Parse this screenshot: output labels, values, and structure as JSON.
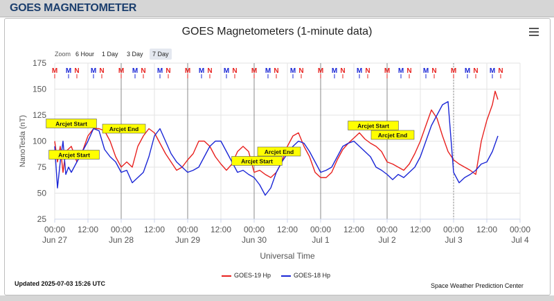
{
  "page": {
    "header_title": "GOES MAGNETOMETER"
  },
  "chart": {
    "title": "GOES Magnetometers (1-minute data)",
    "zoom": {
      "label": "Zoom",
      "buttons": [
        {
          "label": "6 Hour",
          "active": false
        },
        {
          "label": "1 Day",
          "active": false
        },
        {
          "label": "3 Day",
          "active": false
        },
        {
          "label": "7 Day",
          "active": true
        }
      ]
    },
    "updated": "Updated 2025-07-03 15:26 UTC",
    "credit": "Space Weather Prediction Center",
    "legend": [
      {
        "name": "GOES-19 Hp",
        "color": "#e8201e"
      },
      {
        "name": "GOES-18 Hp",
        "color": "#1a26d6"
      }
    ]
  },
  "chart_data": {
    "type": "line",
    "title": "GOES Magnetometers (1-minute data)",
    "xlabel": "Universal Time",
    "ylabel": "NanoTesla (nT)",
    "ylim": [
      25,
      175
    ],
    "yticks": [
      25,
      50,
      75,
      100,
      125,
      150,
      175
    ],
    "xlim": [
      0,
      168
    ],
    "x_unit": "hours since 2025-06-27 00:00 UTC",
    "xticks": [
      {
        "x": 0,
        "time": "00:00",
        "date": "Jun 27"
      },
      {
        "x": 12,
        "time": "12:00",
        "date": ""
      },
      {
        "x": 24,
        "time": "00:00",
        "date": "Jun 28"
      },
      {
        "x": 36,
        "time": "12:00",
        "date": ""
      },
      {
        "x": 48,
        "time": "00:00",
        "date": "Jun 29"
      },
      {
        "x": 60,
        "time": "12:00",
        "date": ""
      },
      {
        "x": 72,
        "time": "00:00",
        "date": "Jun 30"
      },
      {
        "x": 84,
        "time": "12:00",
        "date": ""
      },
      {
        "x": 96,
        "time": "00:00",
        "date": "Jul 1"
      },
      {
        "x": 108,
        "time": "12:00",
        "date": ""
      },
      {
        "x": 120,
        "time": "00:00",
        "date": "Jul 2"
      },
      {
        "x": 132,
        "time": "12:00",
        "date": ""
      },
      {
        "x": 144,
        "time": "00:00",
        "date": "Jul 3"
      },
      {
        "x": 156,
        "time": "12:00",
        "date": ""
      },
      {
        "x": 168,
        "time": "00:00",
        "date": "Jul 4"
      }
    ],
    "grid": true,
    "day_lines": [
      24,
      48,
      72,
      96,
      120
    ],
    "dotted_lines": [
      144
    ],
    "series": [
      {
        "name": "GOES-19 Hp",
        "color": "#e8201e",
        "x": [
          0,
          1,
          2,
          3,
          4,
          6,
          8,
          10,
          12,
          14,
          16,
          18,
          20,
          22,
          24,
          26,
          28,
          30,
          32,
          34,
          36,
          38,
          40,
          42,
          44,
          46,
          48,
          50,
          52,
          54,
          56,
          58,
          60,
          62,
          64,
          66,
          68,
          70,
          72,
          74,
          76,
          78,
          80,
          82,
          84,
          86,
          88,
          90,
          92,
          94,
          96,
          98,
          100,
          102,
          104,
          106,
          108,
          110,
          112,
          114,
          116,
          118,
          120,
          122,
          124,
          126,
          128,
          130,
          132,
          134,
          136,
          138,
          140,
          142,
          144,
          146,
          148,
          150,
          152,
          154,
          156,
          158,
          159,
          160
        ],
        "y": [
          100,
          80,
          95,
          70,
          90,
          95,
          80,
          90,
          105,
          112,
          112,
          110,
          100,
          85,
          75,
          80,
          75,
          95,
          105,
          112,
          108,
          98,
          88,
          80,
          72,
          75,
          82,
          88,
          100,
          100,
          95,
          85,
          78,
          72,
          78,
          90,
          95,
          90,
          70,
          72,
          68,
          65,
          70,
          80,
          95,
          105,
          108,
          95,
          85,
          70,
          65,
          65,
          70,
          82,
          92,
          98,
          103,
          108,
          102,
          98,
          95,
          90,
          80,
          78,
          75,
          72,
          78,
          88,
          100,
          115,
          130,
          122,
          105,
          90,
          82,
          78,
          75,
          72,
          68,
          100,
          120,
          135,
          148,
          140
        ]
      },
      {
        "name": "GOES-18 Hp",
        "color": "#1a26d6",
        "x": [
          0,
          1,
          2,
          3,
          4,
          5,
          6,
          8,
          10,
          12,
          14,
          16,
          18,
          20,
          22,
          24,
          26,
          28,
          30,
          32,
          34,
          36,
          38,
          40,
          42,
          44,
          46,
          48,
          50,
          52,
          54,
          56,
          58,
          60,
          62,
          64,
          66,
          68,
          70,
          72,
          74,
          76,
          78,
          80,
          82,
          84,
          86,
          88,
          90,
          92,
          94,
          96,
          98,
          100,
          102,
          104,
          106,
          108,
          110,
          112,
          114,
          116,
          118,
          120,
          122,
          124,
          126,
          128,
          130,
          132,
          134,
          136,
          138,
          140,
          142,
          144,
          146,
          148,
          150,
          152,
          154,
          156,
          158,
          160
        ],
        "y": [
          95,
          55,
          80,
          100,
          68,
          75,
          70,
          80,
          90,
          100,
          112,
          110,
          92,
          85,
          80,
          70,
          72,
          60,
          65,
          70,
          85,
          105,
          112,
          100,
          88,
          80,
          75,
          70,
          72,
          75,
          85,
          95,
          100,
          100,
          90,
          80,
          70,
          72,
          68,
          65,
          58,
          48,
          55,
          70,
          80,
          88,
          95,
          100,
          98,
          90,
          80,
          70,
          72,
          75,
          85,
          95,
          98,
          100,
          95,
          90,
          85,
          75,
          72,
          68,
          63,
          68,
          65,
          70,
          75,
          85,
          100,
          115,
          125,
          135,
          138,
          70,
          60,
          65,
          68,
          72,
          78,
          80,
          90,
          105
        ]
      }
    ],
    "markers_top": {
      "m_red_x": [
        0,
        24,
        48,
        72,
        96,
        120,
        144
      ],
      "m_blue_x": [
        5,
        29,
        53,
        77,
        101,
        125,
        149
      ],
      "n_red_x": [
        8,
        32,
        56,
        80,
        104,
        128,
        152
      ],
      "m_blue2_x": [
        14,
        38,
        62,
        86,
        110,
        134,
        158
      ],
      "n_red2_x": [
        17,
        41,
        65,
        89,
        113,
        137,
        161
      ]
    },
    "annotations": [
      {
        "text": "Arcjet Start",
        "x": 6,
        "y": 112
      },
      {
        "text": "Arcjet End",
        "x": 25,
        "y": 107
      },
      {
        "text": "Arcjet Start",
        "x": 7,
        "y": 82
      },
      {
        "text": "Arcjet Start",
        "x": 73,
        "y": 76
      },
      {
        "text": "Arcjet End",
        "x": 81,
        "y": 85
      },
      {
        "text": "Arcjet Start",
        "x": 115,
        "y": 110
      },
      {
        "text": "Arcjet End",
        "x": 122,
        "y": 101
      }
    ]
  }
}
